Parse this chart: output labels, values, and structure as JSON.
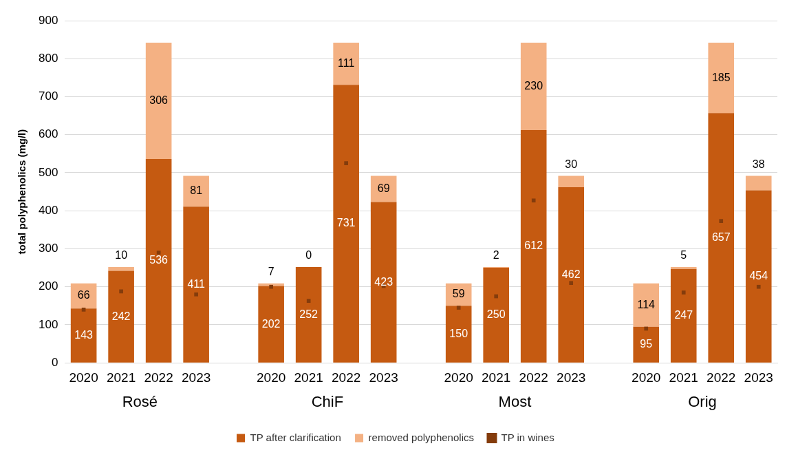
{
  "chart_data": {
    "type": "bar",
    "stacked": true,
    "ylabel": "total polyphenolics (mg/l)",
    "categories": [
      "2020",
      "2021",
      "2022",
      "2023",
      null,
      "2020",
      "2021",
      "2022",
      "2023",
      null,
      "2020",
      "2021",
      "2022",
      "2023",
      null,
      "2020",
      "2021",
      "2022",
      "2023"
    ],
    "series": [
      {
        "name": "TP after clarification",
        "color": "#c55a11",
        "values": [
          143,
          242,
          536,
          411,
          null,
          202,
          252,
          731,
          423,
          null,
          150,
          250,
          612,
          462,
          null,
          95,
          247,
          657,
          454
        ],
        "value_labels": [
          "143",
          "242",
          "536",
          "411",
          null,
          "202",
          "252",
          "731",
          "423",
          null,
          "150",
          "250",
          "612",
          "462",
          null,
          "95",
          "247",
          "657",
          "454"
        ]
      },
      {
        "name": "removed polyphenolics",
        "color": "#f4b183",
        "values": [
          66,
          10,
          306,
          81,
          null,
          7,
          0,
          111,
          69,
          null,
          59,
          2,
          230,
          30,
          null,
          114,
          5,
          185,
          38
        ],
        "value_labels": [
          "66",
          "10",
          "306",
          "81",
          null,
          "7",
          "0",
          "111",
          "69",
          null,
          "59",
          "2",
          "230",
          "30",
          null,
          "114",
          "5",
          "185",
          "38"
        ]
      },
      {
        "name": "TP in wines",
        "type": "scatter",
        "marker": "square",
        "color": "#843c0c",
        "values": [
          140,
          188,
          290,
          180,
          null,
          200,
          163,
          525,
          202,
          null,
          145,
          175,
          427,
          210,
          null,
          90,
          185,
          373,
          200
        ]
      }
    ],
    "ylim": [
      0,
      900
    ],
    "yticks": [
      0,
      100,
      200,
      300,
      400,
      500,
      600,
      700,
      800,
      900
    ],
    "grid": "y",
    "legend": "bottom",
    "annotations": [
      "Rosé",
      "ChiF",
      "Most",
      "Orig"
    ]
  }
}
